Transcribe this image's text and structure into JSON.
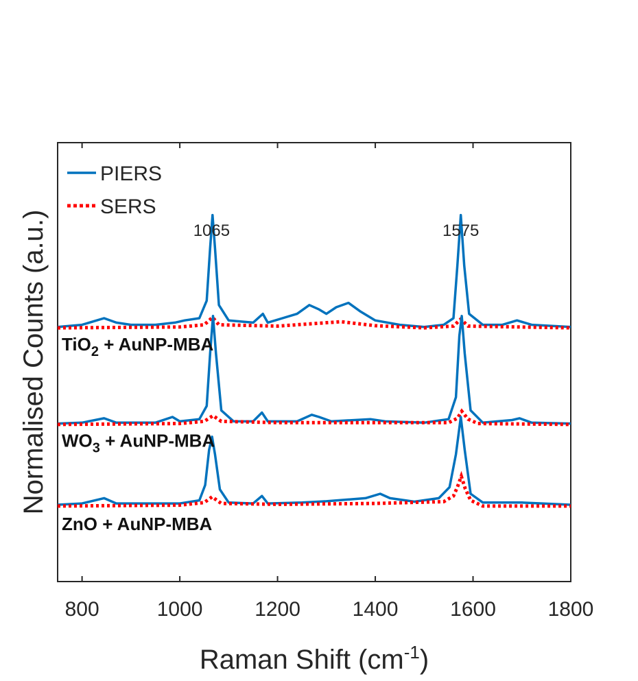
{
  "chart_data": {
    "type": "line",
    "xlabel": "Raman Shift (cm",
    "xlabel_sup": "-1",
    "xlabel_close": ")",
    "ylabel": "Normalised Counts (a.u.)",
    "xlim": [
      750,
      1800
    ],
    "xticks": [
      "800",
      "1000",
      "1200",
      "1400",
      "1600",
      "1800"
    ],
    "grid": false,
    "legend_position": "top-left",
    "legend": [
      {
        "name": "PIERS",
        "color": "#0072BD",
        "style": "solid"
      },
      {
        "name": "SERS",
        "color": "#FF0000",
        "style": "dotted"
      }
    ],
    "peak_labels": [
      {
        "x": 1065,
        "text": "1065"
      },
      {
        "x": 1575,
        "text": "1575"
      }
    ],
    "samples": [
      {
        "label_main": "TiO",
        "label_sub": "2",
        "label_rest": " + AuNP-MBA",
        "baseline": 0.58,
        "piers": [
          [
            750,
            0.58
          ],
          [
            800,
            0.585
          ],
          [
            845,
            0.6
          ],
          [
            870,
            0.59
          ],
          [
            900,
            0.585
          ],
          [
            950,
            0.585
          ],
          [
            990,
            0.59
          ],
          [
            1010,
            0.595
          ],
          [
            1040,
            0.6
          ],
          [
            1055,
            0.64
          ],
          [
            1062,
            0.76
          ],
          [
            1067,
            0.835
          ],
          [
            1072,
            0.76
          ],
          [
            1080,
            0.63
          ],
          [
            1100,
            0.595
          ],
          [
            1150,
            0.59
          ],
          [
            1170,
            0.61
          ],
          [
            1180,
            0.59
          ],
          [
            1210,
            0.6
          ],
          [
            1240,
            0.61
          ],
          [
            1265,
            0.63
          ],
          [
            1285,
            0.62
          ],
          [
            1300,
            0.61
          ],
          [
            1320,
            0.625
          ],
          [
            1345,
            0.635
          ],
          [
            1370,
            0.615
          ],
          [
            1400,
            0.595
          ],
          [
            1450,
            0.585
          ],
          [
            1500,
            0.58
          ],
          [
            1540,
            0.585
          ],
          [
            1560,
            0.6
          ],
          [
            1568,
            0.72
          ],
          [
            1575,
            0.835
          ],
          [
            1582,
            0.72
          ],
          [
            1592,
            0.61
          ],
          [
            1620,
            0.585
          ],
          [
            1660,
            0.585
          ],
          [
            1690,
            0.595
          ],
          [
            1720,
            0.585
          ],
          [
            1800,
            0.58
          ]
        ],
        "sers": [
          [
            750,
            0.578
          ],
          [
            1000,
            0.58
          ],
          [
            1050,
            0.585
          ],
          [
            1067,
            0.602
          ],
          [
            1080,
            0.585
          ],
          [
            1200,
            0.582
          ],
          [
            1330,
            0.592
          ],
          [
            1400,
            0.583
          ],
          [
            1500,
            0.578
          ],
          [
            1560,
            0.582
          ],
          [
            1575,
            0.598
          ],
          [
            1590,
            0.582
          ],
          [
            1800,
            0.578
          ]
        ]
      },
      {
        "label_main": "WO",
        "label_sub": "3",
        "label_rest": " + AuNP-MBA",
        "baseline": 0.36,
        "piers": [
          [
            750,
            0.36
          ],
          [
            800,
            0.362
          ],
          [
            845,
            0.372
          ],
          [
            870,
            0.362
          ],
          [
            950,
            0.362
          ],
          [
            985,
            0.375
          ],
          [
            1000,
            0.365
          ],
          [
            1040,
            0.37
          ],
          [
            1055,
            0.4
          ],
          [
            1062,
            0.52
          ],
          [
            1068,
            0.605
          ],
          [
            1074,
            0.52
          ],
          [
            1085,
            0.39
          ],
          [
            1110,
            0.365
          ],
          [
            1150,
            0.365
          ],
          [
            1168,
            0.385
          ],
          [
            1180,
            0.365
          ],
          [
            1240,
            0.365
          ],
          [
            1270,
            0.38
          ],
          [
            1285,
            0.375
          ],
          [
            1310,
            0.365
          ],
          [
            1390,
            0.37
          ],
          [
            1420,
            0.365
          ],
          [
            1500,
            0.362
          ],
          [
            1550,
            0.37
          ],
          [
            1565,
            0.42
          ],
          [
            1572,
            0.56
          ],
          [
            1577,
            0.605
          ],
          [
            1583,
            0.52
          ],
          [
            1595,
            0.39
          ],
          [
            1620,
            0.362
          ],
          [
            1680,
            0.368
          ],
          [
            1695,
            0.372
          ],
          [
            1720,
            0.362
          ],
          [
            1800,
            0.36
          ]
        ],
        "sers": [
          [
            750,
            0.358
          ],
          [
            1000,
            0.36
          ],
          [
            1050,
            0.365
          ],
          [
            1068,
            0.378
          ],
          [
            1085,
            0.365
          ],
          [
            1200,
            0.362
          ],
          [
            1400,
            0.362
          ],
          [
            1550,
            0.362
          ],
          [
            1568,
            0.372
          ],
          [
            1577,
            0.388
          ],
          [
            1590,
            0.37
          ],
          [
            1610,
            0.36
          ],
          [
            1800,
            0.358
          ]
        ]
      },
      {
        "label_main": "ZnO",
        "label_sub": "",
        "label_rest": " + AuNP-MBA",
        "baseline": 0.17,
        "piers": [
          [
            750,
            0.175
          ],
          [
            800,
            0.178
          ],
          [
            845,
            0.19
          ],
          [
            870,
            0.178
          ],
          [
            950,
            0.178
          ],
          [
            1000,
            0.178
          ],
          [
            1040,
            0.185
          ],
          [
            1052,
            0.22
          ],
          [
            1060,
            0.3
          ],
          [
            1066,
            0.33
          ],
          [
            1072,
            0.29
          ],
          [
            1082,
            0.21
          ],
          [
            1100,
            0.18
          ],
          [
            1150,
            0.178
          ],
          [
            1168,
            0.195
          ],
          [
            1180,
            0.178
          ],
          [
            1250,
            0.18
          ],
          [
            1300,
            0.183
          ],
          [
            1380,
            0.19
          ],
          [
            1410,
            0.2
          ],
          [
            1430,
            0.19
          ],
          [
            1480,
            0.182
          ],
          [
            1530,
            0.19
          ],
          [
            1552,
            0.215
          ],
          [
            1565,
            0.29
          ],
          [
            1575,
            0.375
          ],
          [
            1583,
            0.3
          ],
          [
            1595,
            0.2
          ],
          [
            1620,
            0.18
          ],
          [
            1700,
            0.18
          ],
          [
            1800,
            0.175
          ]
        ],
        "sers": [
          [
            750,
            0.172
          ],
          [
            1000,
            0.174
          ],
          [
            1050,
            0.18
          ],
          [
            1066,
            0.193
          ],
          [
            1085,
            0.178
          ],
          [
            1200,
            0.176
          ],
          [
            1400,
            0.178
          ],
          [
            1540,
            0.182
          ],
          [
            1560,
            0.195
          ],
          [
            1568,
            0.215
          ],
          [
            1576,
            0.24
          ],
          [
            1584,
            0.212
          ],
          [
            1595,
            0.185
          ],
          [
            1620,
            0.172
          ],
          [
            1800,
            0.172
          ]
        ]
      }
    ]
  }
}
